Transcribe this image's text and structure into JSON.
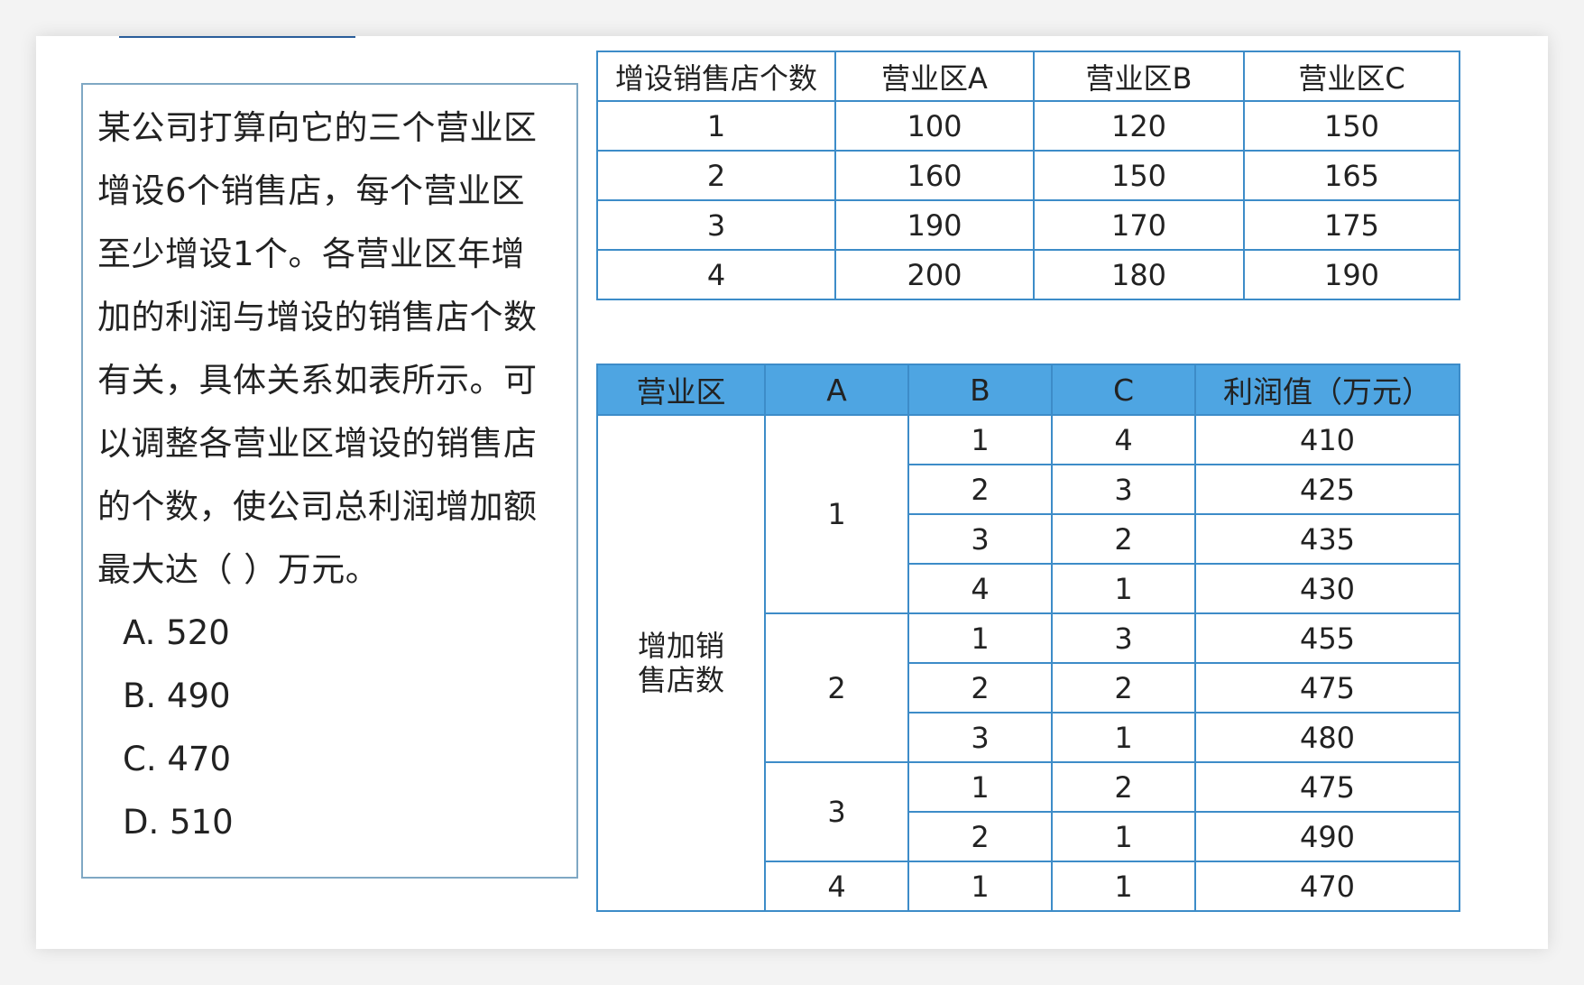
{
  "question": {
    "lines": [
      "某公司打算向它的三个营业区",
      "增设6个销售店，每个营业区",
      "至少增设1个。各营业区年增",
      "加的利润与增设的销售店个数",
      "有关，具体关系如表所示。可",
      "以调整各营业区增设的销售店",
      "的个数，使公司总利润增加额",
      "最大达（  ）万元。"
    ],
    "options": [
      "A.  520",
      "B.  490",
      "C.  470",
      "D.  510"
    ]
  },
  "table1": {
    "headers": [
      "增设销售店个数",
      "营业区A",
      "营业区B",
      "营业区C"
    ],
    "rows": [
      [
        "1",
        "100",
        "120",
        "150"
      ],
      [
        "2",
        "160",
        "150",
        "165"
      ],
      [
        "3",
        "190",
        "170",
        "175"
      ],
      [
        "4",
        "200",
        "180",
        "190"
      ]
    ]
  },
  "table2": {
    "headers": [
      "营业区",
      "A",
      "B",
      "C",
      "利润值（万元）"
    ],
    "row_label": "增加销售店数",
    "groups": [
      {
        "a": "1",
        "rows": [
          [
            "1",
            "4",
            "410"
          ],
          [
            "2",
            "3",
            "425"
          ],
          [
            "3",
            "2",
            "435"
          ],
          [
            "4",
            "1",
            "430"
          ]
        ]
      },
      {
        "a": "2",
        "rows": [
          [
            "1",
            "3",
            "455"
          ],
          [
            "2",
            "2",
            "475"
          ],
          [
            "3",
            "1",
            "480"
          ]
        ]
      },
      {
        "a": "3",
        "rows": [
          [
            "1",
            "2",
            "475"
          ],
          [
            "2",
            "1",
            "490"
          ]
        ]
      },
      {
        "a": "4",
        "rows": [
          [
            "1",
            "1",
            "470"
          ]
        ]
      }
    ]
  },
  "colors": {
    "border": "#3d8cc8",
    "header_bg": "#4ea5e2",
    "box_border": "#7fa8c4"
  }
}
